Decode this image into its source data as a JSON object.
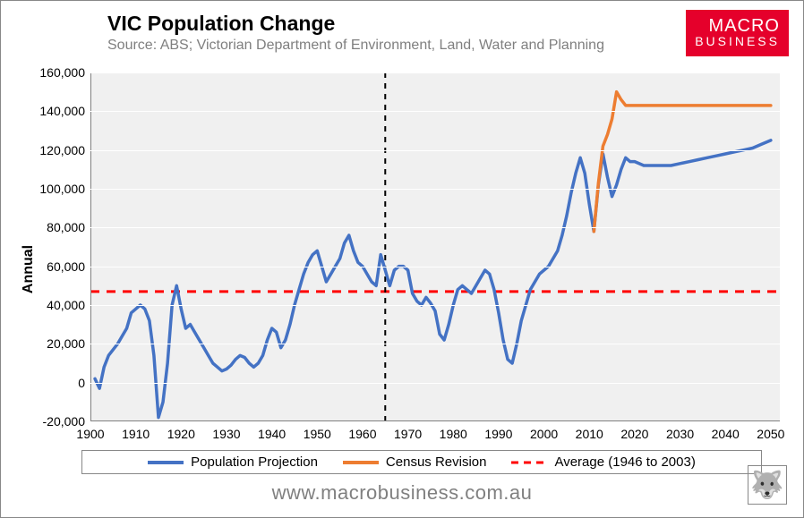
{
  "title": "VIC Population Change",
  "title_fontsize": 23,
  "subtitle": "Source: ABS; Victorian Department of Environment, Land, Water and Planning",
  "subtitle_fontsize": 16,
  "subtitle_color": "#7f7f7f",
  "ylabel": "Annual",
  "logo": {
    "line1": "MACRO",
    "line2": "BUSINESS",
    "bg": "#e5002b",
    "font1": 20,
    "font2": 14
  },
  "chart": {
    "type": "line",
    "background_color": "#f0f0f0",
    "grid_color": "#ffffff",
    "axis_color": "#808080",
    "ylim": [
      -20000,
      160000
    ],
    "ytick_step": 20000,
    "yticks": [
      "-20,000",
      "0",
      "20,000",
      "40,000",
      "60,000",
      "80,000",
      "100,000",
      "120,000",
      "140,000",
      "160,000"
    ],
    "xlim": [
      1900,
      2052
    ],
    "xticks": [
      1900,
      1910,
      1920,
      1930,
      1940,
      1950,
      1960,
      1970,
      1980,
      1990,
      2000,
      2010,
      2020,
      2030,
      2040,
      2050
    ],
    "vertical_marker": {
      "x": 1965,
      "color": "#000000",
      "dash": "6,6",
      "width": 2
    },
    "average_line": {
      "y": 47000,
      "color": "#ff0000",
      "dash": "10,8",
      "width": 3
    },
    "series": [
      {
        "name": "Population Projection",
        "color": "#4472c4",
        "width": 3.5,
        "data": [
          [
            1901,
            2000
          ],
          [
            1902,
            -3000
          ],
          [
            1903,
            8000
          ],
          [
            1904,
            14000
          ],
          [
            1905,
            17000
          ],
          [
            1906,
            20000
          ],
          [
            1907,
            24000
          ],
          [
            1908,
            28000
          ],
          [
            1909,
            36000
          ],
          [
            1910,
            38000
          ],
          [
            1911,
            40000
          ],
          [
            1912,
            38000
          ],
          [
            1913,
            32000
          ],
          [
            1914,
            14000
          ],
          [
            1915,
            -18000
          ],
          [
            1916,
            -10000
          ],
          [
            1917,
            10000
          ],
          [
            1918,
            40000
          ],
          [
            1919,
            50000
          ],
          [
            1920,
            38000
          ],
          [
            1921,
            28000
          ],
          [
            1922,
            30000
          ],
          [
            1923,
            26000
          ],
          [
            1924,
            22000
          ],
          [
            1925,
            18000
          ],
          [
            1926,
            14000
          ],
          [
            1927,
            10000
          ],
          [
            1928,
            8000
          ],
          [
            1929,
            6000
          ],
          [
            1930,
            7000
          ],
          [
            1931,
            9000
          ],
          [
            1932,
            12000
          ],
          [
            1933,
            14000
          ],
          [
            1934,
            13000
          ],
          [
            1935,
            10000
          ],
          [
            1936,
            8000
          ],
          [
            1937,
            10000
          ],
          [
            1938,
            14000
          ],
          [
            1939,
            22000
          ],
          [
            1940,
            28000
          ],
          [
            1941,
            26000
          ],
          [
            1942,
            18000
          ],
          [
            1943,
            22000
          ],
          [
            1944,
            30000
          ],
          [
            1945,
            40000
          ],
          [
            1946,
            48000
          ],
          [
            1947,
            56000
          ],
          [
            1948,
            62000
          ],
          [
            1949,
            66000
          ],
          [
            1950,
            68000
          ],
          [
            1951,
            60000
          ],
          [
            1952,
            52000
          ],
          [
            1953,
            56000
          ],
          [
            1954,
            60000
          ],
          [
            1955,
            64000
          ],
          [
            1956,
            72000
          ],
          [
            1957,
            76000
          ],
          [
            1958,
            68000
          ],
          [
            1959,
            62000
          ],
          [
            1960,
            60000
          ],
          [
            1961,
            56000
          ],
          [
            1962,
            52000
          ],
          [
            1963,
            50000
          ],
          [
            1964,
            66000
          ],
          [
            1965,
            58000
          ],
          [
            1966,
            50000
          ],
          [
            1967,
            58000
          ],
          [
            1968,
            60000
          ],
          [
            1969,
            60000
          ],
          [
            1970,
            58000
          ],
          [
            1971,
            46000
          ],
          [
            1972,
            42000
          ],
          [
            1973,
            40000
          ],
          [
            1974,
            44000
          ],
          [
            1975,
            41000
          ],
          [
            1976,
            37000
          ],
          [
            1977,
            25000
          ],
          [
            1978,
            22000
          ],
          [
            1979,
            30000
          ],
          [
            1980,
            40000
          ],
          [
            1981,
            48000
          ],
          [
            1982,
            50000
          ],
          [
            1983,
            48000
          ],
          [
            1984,
            46000
          ],
          [
            1985,
            50000
          ],
          [
            1986,
            54000
          ],
          [
            1987,
            58000
          ],
          [
            1988,
            56000
          ],
          [
            1989,
            48000
          ],
          [
            1990,
            36000
          ],
          [
            1991,
            22000
          ],
          [
            1992,
            12000
          ],
          [
            1993,
            10000
          ],
          [
            1994,
            20000
          ],
          [
            1995,
            32000
          ],
          [
            1996,
            40000
          ],
          [
            1997,
            48000
          ],
          [
            1998,
            52000
          ],
          [
            1999,
            56000
          ],
          [
            2000,
            58000
          ],
          [
            2001,
            60000
          ],
          [
            2002,
            64000
          ],
          [
            2003,
            68000
          ],
          [
            2004,
            76000
          ],
          [
            2005,
            86000
          ],
          [
            2006,
            98000
          ],
          [
            2007,
            108000
          ],
          [
            2008,
            116000
          ],
          [
            2009,
            108000
          ],
          [
            2010,
            92000
          ],
          [
            2011,
            78000
          ],
          [
            2012,
            102000
          ],
          [
            2013,
            118000
          ],
          [
            2014,
            106000
          ],
          [
            2015,
            96000
          ],
          [
            2016,
            102000
          ],
          [
            2017,
            110000
          ],
          [
            2018,
            116000
          ],
          [
            2019,
            114000
          ],
          [
            2020,
            114000
          ],
          [
            2022,
            112000
          ],
          [
            2024,
            112000
          ],
          [
            2026,
            112000
          ],
          [
            2028,
            112000
          ],
          [
            2030,
            113000
          ],
          [
            2032,
            114000
          ],
          [
            2034,
            115000
          ],
          [
            2036,
            116000
          ],
          [
            2038,
            117000
          ],
          [
            2040,
            118000
          ],
          [
            2042,
            119000
          ],
          [
            2044,
            120000
          ],
          [
            2046,
            121000
          ],
          [
            2048,
            123000
          ],
          [
            2050,
            125000
          ]
        ]
      },
      {
        "name": "Census Revision",
        "color": "#ed7d31",
        "width": 3.5,
        "data": [
          [
            2011,
            78000
          ],
          [
            2012,
            103000
          ],
          [
            2013,
            122000
          ],
          [
            2014,
            128000
          ],
          [
            2015,
            136000
          ],
          [
            2016,
            150000
          ],
          [
            2017,
            146000
          ],
          [
            2018,
            143000
          ],
          [
            2020,
            143000
          ],
          [
            2025,
            143000
          ],
          [
            2030,
            143000
          ],
          [
            2035,
            143000
          ],
          [
            2040,
            143000
          ],
          [
            2045,
            143000
          ],
          [
            2050,
            143000
          ]
        ]
      }
    ],
    "legend": {
      "items": [
        {
          "label": "Population Projection",
          "color": "#4472c4",
          "dash": null,
          "width": 4
        },
        {
          "label": "Census Revision",
          "color": "#ed7d31",
          "dash": null,
          "width": 4
        },
        {
          "label": "Average (1946 to 2003)",
          "color": "#ff0000",
          "dash": "8,6",
          "width": 3
        }
      ]
    }
  },
  "watermark": "www.macrobusiness.com.au",
  "wolf_icon": "🐺"
}
